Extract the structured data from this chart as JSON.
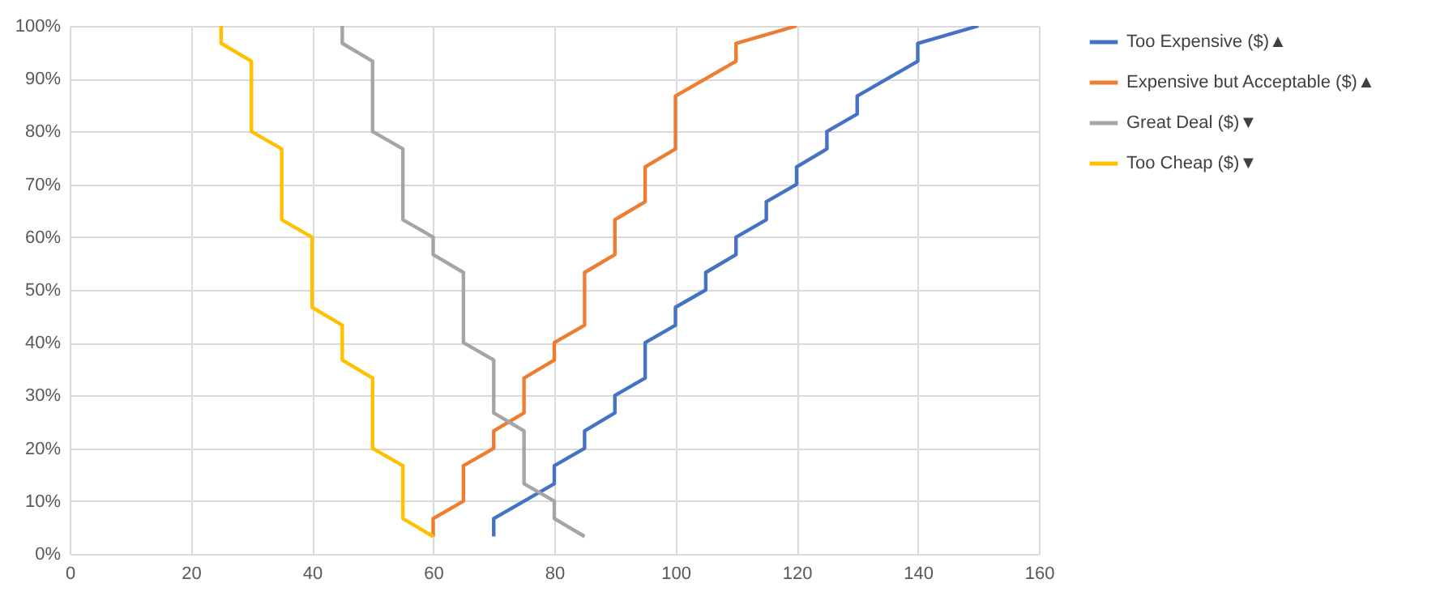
{
  "chart_data": {
    "type": "line",
    "xlim": [
      0,
      160
    ],
    "xticks": [
      0,
      20,
      40,
      60,
      80,
      100,
      120,
      140,
      160
    ],
    "ylim": [
      0,
      100
    ],
    "yticks": [
      {
        "value": 0,
        "label": "0%"
      },
      {
        "value": 10,
        "label": "10%"
      },
      {
        "value": 20,
        "label": "20%"
      },
      {
        "value": 30,
        "label": "30%"
      },
      {
        "value": 40,
        "label": "40%"
      },
      {
        "value": 50,
        "label": "50%"
      },
      {
        "value": 60,
        "label": "60%"
      },
      {
        "value": 70,
        "label": "70%"
      },
      {
        "value": 80,
        "label": "80%"
      },
      {
        "value": 90,
        "label": "90%"
      },
      {
        "value": 100,
        "label": "100%"
      }
    ],
    "grid": true,
    "legend": "right",
    "marker": "none",
    "line_style": "solid",
    "series": [
      {
        "name": "Too Expensive ($)▲",
        "color": "#4472c4",
        "x": [
          70,
          70,
          80,
          80,
          85,
          85,
          90,
          90,
          95,
          95,
          100,
          100,
          105,
          105,
          110,
          110,
          115,
          115,
          120,
          120,
          125,
          125,
          130,
          130,
          135,
          140,
          140,
          150
        ],
        "values": [
          3.3,
          6.7,
          13.3,
          16.7,
          20,
          23.3,
          26.7,
          30,
          33.3,
          40,
          43.3,
          46.7,
          50,
          53.3,
          56.7,
          60,
          63.3,
          66.7,
          70,
          73.3,
          76.7,
          80,
          83.3,
          86.7,
          90,
          93.3,
          96.7,
          100
        ]
      },
      {
        "name": "Expensive but Acceptable ($)▲",
        "color": "#ed7d31",
        "x": [
          60,
          60,
          65,
          65,
          70,
          70,
          75,
          75,
          80,
          80,
          85,
          85,
          90,
          90,
          95,
          95,
          100,
          100,
          110,
          110,
          120
        ],
        "values": [
          3.3,
          6.7,
          10,
          16.7,
          20,
          23.3,
          26.7,
          33.3,
          36.7,
          40,
          43.3,
          53.3,
          56.7,
          63.3,
          66.7,
          73.3,
          76.7,
          86.7,
          93.3,
          96.7,
          100
        ]
      },
      {
        "name": "Great Deal ($)▼",
        "color": "#a5a5a5",
        "x": [
          45,
          45,
          50,
          50,
          55,
          55,
          60,
          60,
          65,
          65,
          70,
          70,
          75,
          75,
          80,
          80,
          85
        ],
        "values": [
          100,
          96.7,
          93.3,
          80,
          76.7,
          63.3,
          60,
          56.7,
          53.3,
          40,
          36.7,
          26.7,
          23.3,
          13.3,
          10,
          6.7,
          3.3
        ]
      },
      {
        "name": "Too Cheap ($)▼",
        "color": "#ffc000",
        "x": [
          25,
          25,
          30,
          30,
          35,
          35,
          40,
          40,
          45,
          45,
          50,
          50,
          55,
          55,
          60
        ],
        "values": [
          100,
          96.7,
          93.3,
          80,
          76.7,
          63.3,
          60,
          46.7,
          43.3,
          36.7,
          33.3,
          20,
          16.7,
          6.7,
          3.3
        ]
      }
    ]
  }
}
